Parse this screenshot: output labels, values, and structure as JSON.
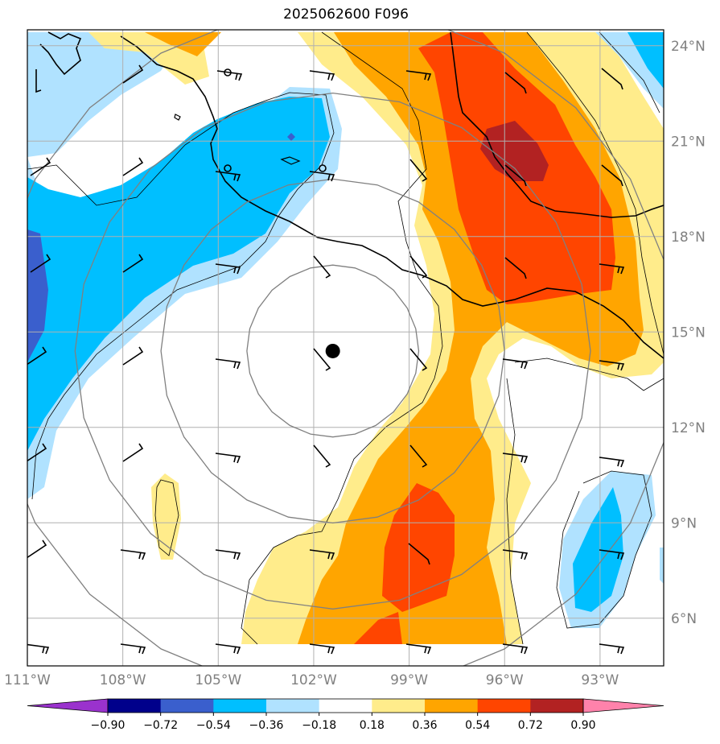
{
  "title": "2025062600 F096",
  "map": {
    "lon_range": [
      -111,
      -91
    ],
    "lat_range": [
      4.5,
      24.5
    ],
    "lat_ticks": [
      {
        "value": 24,
        "label": "24°N"
      },
      {
        "value": 21,
        "label": "21°N"
      },
      {
        "value": 18,
        "label": "18°N"
      },
      {
        "value": 15,
        "label": "15°N"
      },
      {
        "value": 12,
        "label": "12°N"
      },
      {
        "value": 9,
        "label": "9°N"
      },
      {
        "value": 6,
        "label": "6°N"
      }
    ],
    "lon_ticks": [
      {
        "value": -111,
        "label": "111°W"
      },
      {
        "value": -108,
        "label": "108°W"
      },
      {
        "value": -105,
        "label": "105°W"
      },
      {
        "value": -102,
        "label": "102°W"
      },
      {
        "value": -99,
        "label": "99°W"
      },
      {
        "value": -96,
        "label": "96°W"
      },
      {
        "value": -93,
        "label": "93°W"
      }
    ],
    "storm_center": {
      "lon": -101.4,
      "lat": 14.4
    },
    "range_rings_deg": [
      2.7,
      5.4,
      8.1,
      10.8
    ],
    "grid": true
  },
  "colorbar": {
    "levels": [
      "−0.90",
      "−0.72",
      "−0.54",
      "−0.36",
      "−0.18",
      "0.18",
      "0.36",
      "0.54",
      "0.72",
      "0.90"
    ],
    "colors": [
      "#9a32cd",
      "#00008b",
      "#3a5fcd",
      "#00bfff",
      "#b0e2ff",
      "#ffffff",
      "#ffec8b",
      "#ffa500",
      "#ff4500",
      "#b22222",
      "#ff82ab"
    ],
    "extend": "both"
  },
  "palette": {
    "lightblue": "#b0e2ff",
    "blue": "#00bfff",
    "darkblue": "#3a5fcd",
    "yellow": "#ffec8b",
    "orange": "#ffa500",
    "redorange": "#ff4500",
    "firebrick": "#b22222",
    "grid": "#b0b0b0",
    "ring": "#808080"
  }
}
